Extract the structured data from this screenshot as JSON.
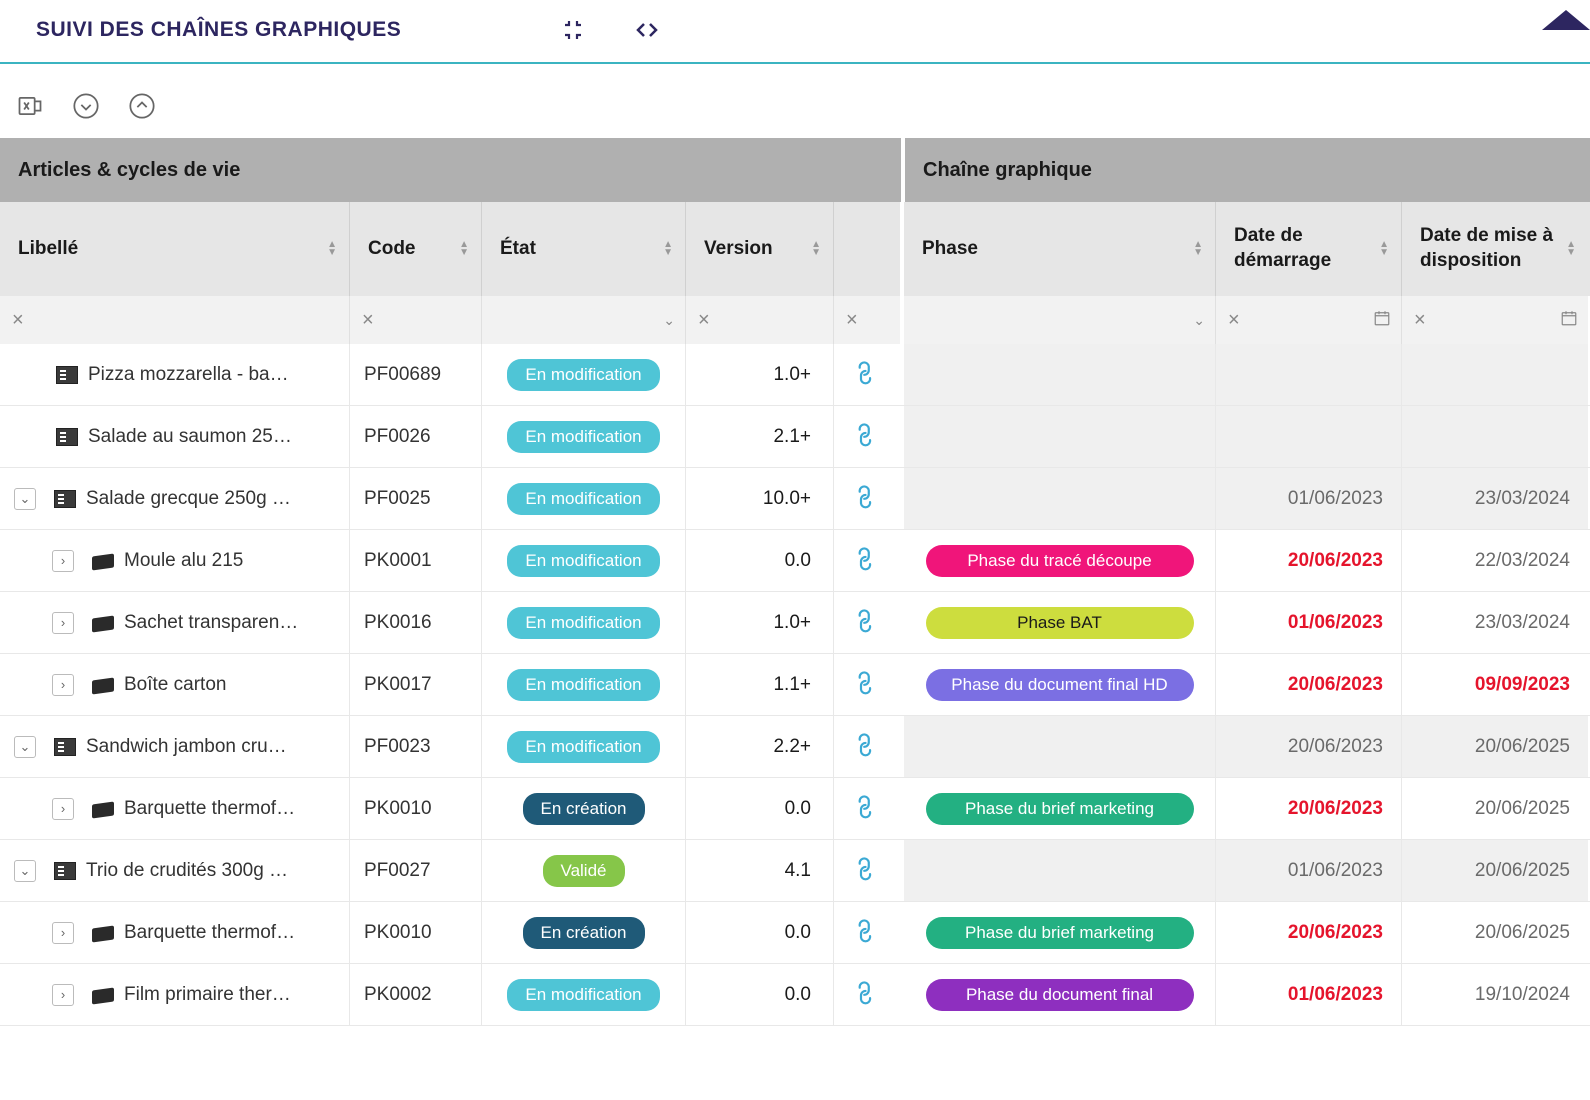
{
  "header": {
    "title": "SUIVI DES CHAÎNES GRAPHIQUES"
  },
  "group_headers": {
    "articles": "Articles & cycles de vie",
    "chaine": "Chaîne graphique"
  },
  "columns": {
    "libelle": "Libellé",
    "code": "Code",
    "etat": "État",
    "version": "Version",
    "phase": "Phase",
    "date_dem": "Date de démarrage",
    "date_dispo": "Date de mise à disposition"
  },
  "status_styles": {
    "en_modification": {
      "label": "En modification",
      "bg": "#4fc5d6",
      "fg": "#ffffff"
    },
    "en_creation": {
      "label": "En création",
      "bg": "#1f5a78",
      "fg": "#ffffff"
    },
    "valide": {
      "label": "Validé",
      "bg": "#86c649",
      "fg": "#ffffff"
    }
  },
  "phase_styles": {
    "trace_decoupe": {
      "label": "Phase du tracé découpe",
      "bg": "#f0157a",
      "fg": "#ffffff"
    },
    "bat": {
      "label": "Phase BAT",
      "bg": "#cddd3e",
      "fg": "#1a1a1a"
    },
    "doc_final_hd": {
      "label": "Phase du document final HD",
      "bg": "#7b6fe3",
      "fg": "#ffffff"
    },
    "brief_marketing": {
      "label": "Phase du brief marketing",
      "bg": "#23b082",
      "fg": "#ffffff"
    },
    "doc_final": {
      "label": "Phase du document final",
      "bg": "#8e2fbf",
      "fg": "#ffffff"
    }
  },
  "rows": [
    {
      "level": 0,
      "toggle": null,
      "icon": "doc",
      "libelle": "Pizza mozzarella - ba…",
      "code": "PF00689",
      "status": "en_modification",
      "version": "1.0+",
      "link": true,
      "phase": null,
      "date1": null,
      "date1_red": false,
      "date2": null,
      "date2_red": false,
      "shaded": true
    },
    {
      "level": 0,
      "toggle": null,
      "icon": "doc",
      "libelle": "Salade au saumon 25…",
      "code": "PF0026",
      "status": "en_modification",
      "version": "2.1+",
      "link": true,
      "phase": null,
      "date1": null,
      "date1_red": false,
      "date2": null,
      "date2_red": false,
      "shaded": true
    },
    {
      "level": 0,
      "toggle": "down",
      "icon": "doc",
      "libelle": "Salade grecque 250g …",
      "code": "PF0025",
      "status": "en_modification",
      "version": "10.0+",
      "link": true,
      "phase": null,
      "date1": "01/06/2023",
      "date1_red": false,
      "date2": "23/03/2024",
      "date2_red": false,
      "shaded": true
    },
    {
      "level": 1,
      "toggle": "right",
      "icon": "pkg",
      "libelle": "Moule alu 215",
      "code": "PK0001",
      "status": "en_modification",
      "version": "0.0",
      "link": true,
      "phase": "trace_decoupe",
      "date1": "20/06/2023",
      "date1_red": true,
      "date2": "22/03/2024",
      "date2_red": false,
      "shaded": false
    },
    {
      "level": 1,
      "toggle": "right",
      "icon": "pkg",
      "libelle": "Sachet transparen…",
      "code": "PK0016",
      "status": "en_modification",
      "version": "1.0+",
      "link": true,
      "phase": "bat",
      "date1": "01/06/2023",
      "date1_red": true,
      "date2": "23/03/2024",
      "date2_red": false,
      "shaded": false
    },
    {
      "level": 1,
      "toggle": "right",
      "icon": "pkg",
      "libelle": "Boîte carton",
      "code": "PK0017",
      "status": "en_modification",
      "version": "1.1+",
      "link": true,
      "phase": "doc_final_hd",
      "date1": "20/06/2023",
      "date1_red": true,
      "date2": "09/09/2023",
      "date2_red": true,
      "shaded": false
    },
    {
      "level": 0,
      "toggle": "down",
      "icon": "doc",
      "libelle": "Sandwich jambon cru…",
      "code": "PF0023",
      "status": "en_modification",
      "version": "2.2+",
      "link": true,
      "phase": null,
      "date1": "20/06/2023",
      "date1_red": false,
      "date2": "20/06/2025",
      "date2_red": false,
      "shaded": true
    },
    {
      "level": 1,
      "toggle": "right",
      "icon": "pkg",
      "libelle": "Barquette thermof…",
      "code": "PK0010",
      "status": "en_creation",
      "version": "0.0",
      "link": true,
      "phase": "brief_marketing",
      "date1": "20/06/2023",
      "date1_red": true,
      "date2": "20/06/2025",
      "date2_red": false,
      "shaded": false
    },
    {
      "level": 0,
      "toggle": "down",
      "icon": "doc",
      "libelle": "Trio de crudités 300g …",
      "code": "PF0027",
      "status": "valide",
      "version": "4.1",
      "link": true,
      "phase": null,
      "date1": "01/06/2023",
      "date1_red": false,
      "date2": "20/06/2025",
      "date2_red": false,
      "shaded": true
    },
    {
      "level": 1,
      "toggle": "right",
      "icon": "pkg",
      "libelle": "Barquette thermof…",
      "code": "PK0010",
      "status": "en_creation",
      "version": "0.0",
      "link": true,
      "phase": "brief_marketing",
      "date1": "20/06/2023",
      "date1_red": true,
      "date2": "20/06/2025",
      "date2_red": false,
      "shaded": false
    },
    {
      "level": 1,
      "toggle": "right",
      "icon": "pkg",
      "libelle": "Film primaire ther…",
      "code": "PK0002",
      "status": "en_modification",
      "version": "0.0",
      "link": true,
      "phase": "doc_final",
      "date1": "01/06/2023",
      "date1_red": true,
      "date2": "19/10/2024",
      "date2_red": false,
      "shaded": false
    }
  ]
}
